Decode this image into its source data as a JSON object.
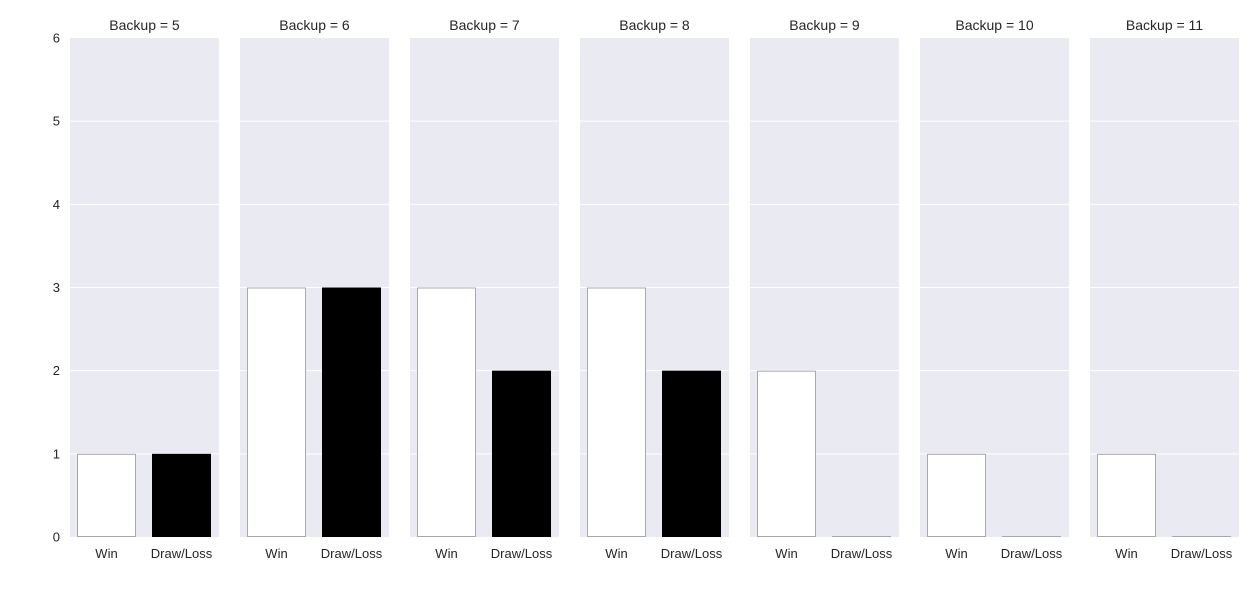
{
  "chart_data": {
    "type": "bar",
    "categories": [
      "Win",
      "Draw/Loss"
    ],
    "ylim": [
      0,
      6
    ],
    "yticks": [
      0,
      1,
      2,
      3,
      4,
      5,
      6
    ],
    "grid": true,
    "xlabel": "",
    "ylabel": "",
    "colors": {
      "panel_bg": "#eaeaf2",
      "grid": "#ffffff",
      "win_fill": "#ffffff",
      "win_stroke": "#a8a8b0",
      "loss_fill": "#000000"
    },
    "panels": [
      {
        "title": "Backup = 5",
        "values": [
          1,
          1
        ]
      },
      {
        "title": "Backup = 6",
        "values": [
          3,
          3
        ]
      },
      {
        "title": "Backup = 7",
        "values": [
          3,
          2
        ]
      },
      {
        "title": "Backup = 8",
        "values": [
          3,
          2
        ]
      },
      {
        "title": "Backup = 9",
        "values": [
          2,
          0
        ]
      },
      {
        "title": "Backup = 10",
        "values": [
          1,
          0
        ]
      },
      {
        "title": "Backup = 11",
        "values": [
          1,
          0
        ]
      }
    ]
  }
}
